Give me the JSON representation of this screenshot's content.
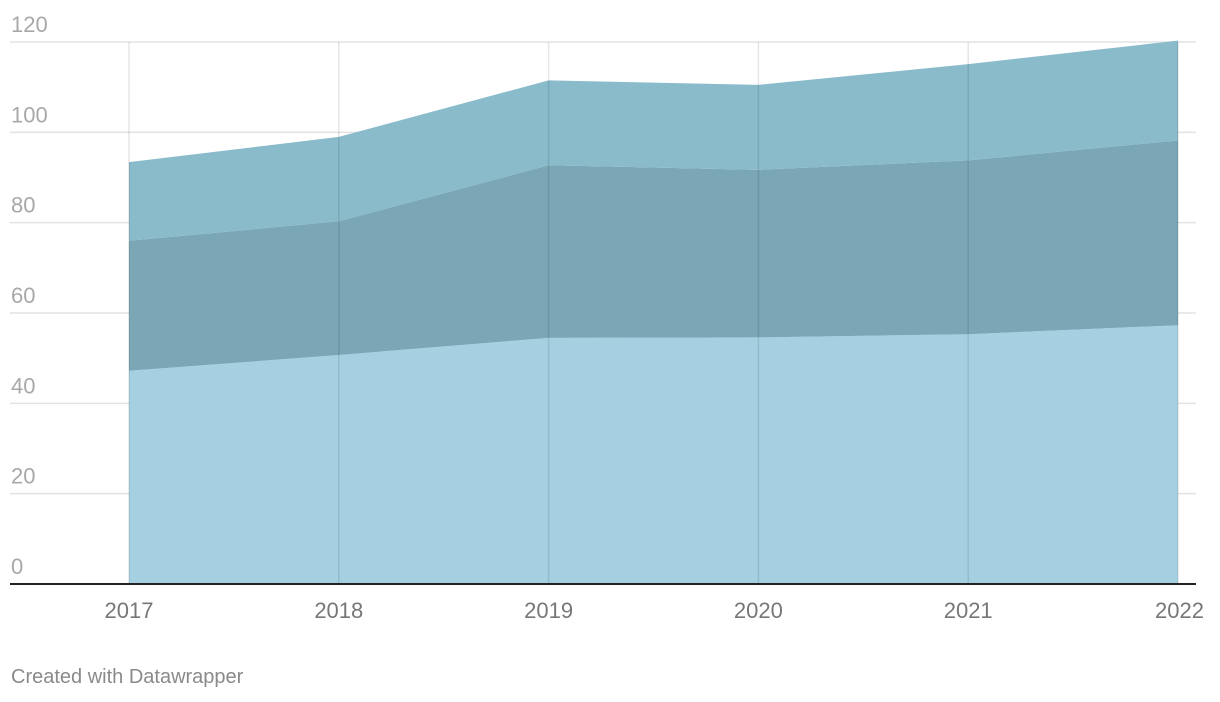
{
  "chart_data": {
    "type": "area",
    "stacked": true,
    "categories": [
      "2017",
      "2018",
      "2019",
      "2020",
      "2021",
      "2022"
    ],
    "series": [
      {
        "values": [
          47.2,
          50.7,
          54.5,
          54.6,
          55.3,
          57.3
        ],
        "color": "#a5d0e2"
      },
      {
        "values": [
          28.8,
          29.6,
          38.2,
          37.1,
          38.5,
          40.9
        ],
        "color": "#7aa6b5"
      },
      {
        "values": [
          17.4,
          18.7,
          18.8,
          18.8,
          21.3,
          22.1
        ],
        "color": "#89bbcb"
      }
    ],
    "y_ticks": [
      "0",
      "20",
      "40",
      "60",
      "80",
      "100",
      "120"
    ],
    "ylim": [
      0,
      120
    ],
    "grid": true,
    "title": "",
    "xlabel": "",
    "ylabel": ""
  },
  "footer": {
    "credit": "Created with Datawrapper"
  },
  "colors": {
    "gridline": "#e3e3e3",
    "baseline": "#222222"
  }
}
